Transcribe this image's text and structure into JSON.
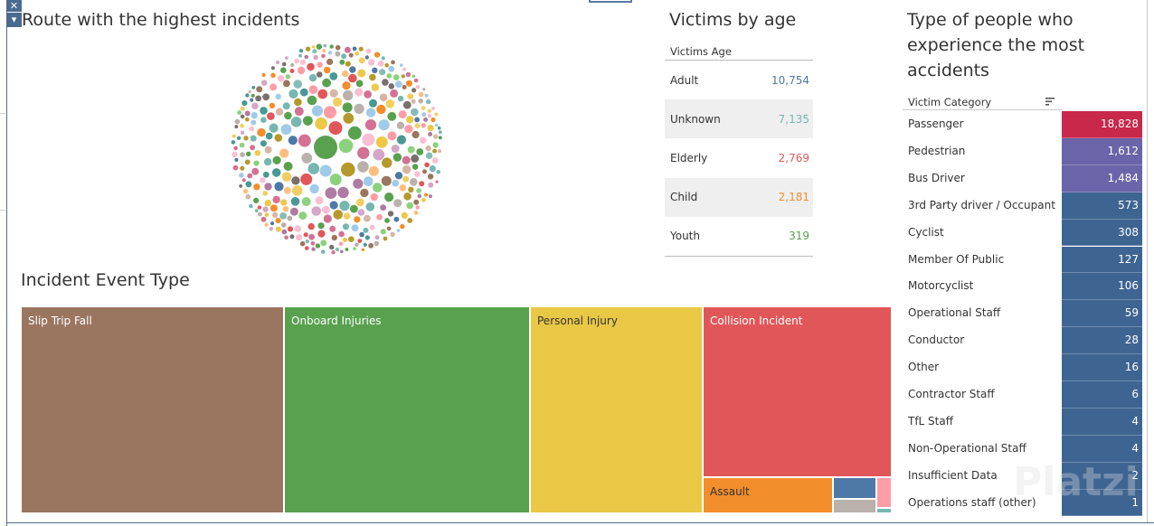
{
  "bubble_title": "Route with the highest incidents",
  "age": {
    "title": "Victims by age",
    "header": "Victims Age",
    "rows": [
      {
        "label": "Adult",
        "value": "10,754",
        "color": "#4e79a7"
      },
      {
        "label": "Unknown",
        "value": "7,135",
        "color": "#76b7b2"
      },
      {
        "label": "Elderly",
        "value": "2,769",
        "color": "#e15759"
      },
      {
        "label": "Child",
        "value": "2,181",
        "color": "#f28e2b"
      },
      {
        "label": "Youth",
        "value": "319",
        "color": "#59a14f"
      }
    ]
  },
  "category": {
    "title_lines": [
      "Type of people who",
      "experience the most",
      "accidents"
    ],
    "header": "Victim Category",
    "rows": [
      {
        "label": "Passenger",
        "value": "18,828",
        "color": "#c8284a"
      },
      {
        "label": "Pedestrian",
        "value": "1,612",
        "color": "#6a65a8"
      },
      {
        "label": "Bus Driver",
        "value": "1,484",
        "color": "#6a65a8"
      },
      {
        "label": "3rd Party driver / Occupant",
        "value": "573",
        "color": "#3e6592"
      },
      {
        "label": "Cyclist",
        "value": "308",
        "color": "#3e6592"
      },
      {
        "label": "Member Of Public",
        "value": "127",
        "color": "#3e6592"
      },
      {
        "label": "Motorcyclist",
        "value": "106",
        "color": "#3e6592"
      },
      {
        "label": "Operational Staff",
        "value": "59",
        "color": "#3e6592"
      },
      {
        "label": "Conductor",
        "value": "28",
        "color": "#3e6592"
      },
      {
        "label": "Other",
        "value": "16",
        "color": "#3e6592"
      },
      {
        "label": "Contractor Staff",
        "value": "6",
        "color": "#3e6592"
      },
      {
        "label": "TfL Staff",
        "value": "4",
        "color": "#3e6592"
      },
      {
        "label": "Non-Operational Staff",
        "value": "4",
        "color": "#3e6592"
      },
      {
        "label": "Insufficient Data",
        "value": "2",
        "color": "#3e6592"
      },
      {
        "label": "Operations staff (other)",
        "value": "1",
        "color": "#3e6592"
      }
    ]
  },
  "treemap": {
    "title": "Incident Event Type",
    "blocks": [
      {
        "label": "Slip Trip Fall",
        "color": "#9a7560"
      },
      {
        "label": "Onboard Injuries",
        "color": "#59a14f"
      },
      {
        "label": "Personal Injury",
        "color": "#e9c846",
        "dark": true
      },
      {
        "label": "Collision Incident",
        "color": "#e15759"
      },
      {
        "label": "Assault",
        "color": "#f28e2b",
        "dark": true
      }
    ],
    "small_colors": [
      "#4e79a7",
      "#bab0ac",
      "#ff9da7",
      "#76b7b2"
    ]
  },
  "controls": {
    "close_glyph": "✕",
    "menu_glyph": "▾"
  },
  "watermark": "Platzi"
}
